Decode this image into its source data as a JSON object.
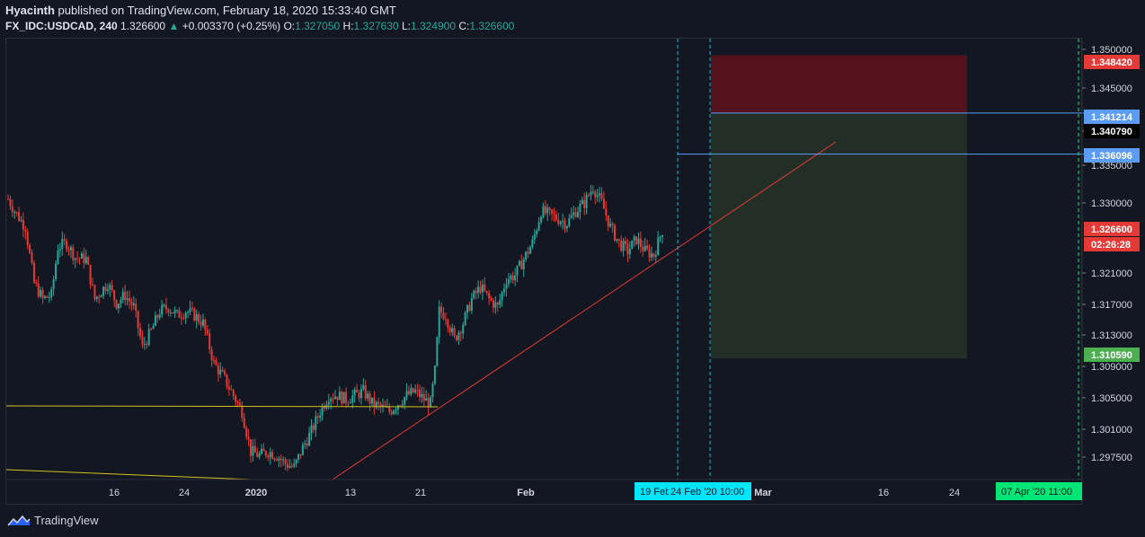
{
  "header": {
    "author": "Hyacinth",
    "published_text": "published on TradingView.com, February 18, 2020 15:33:40 GMT",
    "symbol": "FX_IDC:USDCAD, 240",
    "last": "1.326600",
    "change_icon": "triangle-up-icon",
    "change": "+0.003370 (+0.25%)",
    "open_label": "O:",
    "open": "1.327050",
    "high_label": "H:",
    "high": "1.327630",
    "low_label": "L:",
    "low": "1.324900",
    "close_label": "C:",
    "close": "1.326600"
  },
  "colors": {
    "background": "#131722",
    "up": "#26a69a",
    "down": "#e53935",
    "stop_zone": "#5c131c",
    "target_zone": "#243027",
    "trendline": "#e53935",
    "support": "#d4c21c",
    "cursor_line": "#00bcd4",
    "blue_line": "#5b9cf6",
    "green_line": "#00e676"
  },
  "chart_data": {
    "type": "candlestick",
    "ylim": [
      1.2955,
      1.3505
    ],
    "y_ticks": [
      "1.350000",
      "1.345000",
      "1.340790",
      "1.335000",
      "1.330000",
      "1.321000",
      "1.317000",
      "1.313000",
      "1.309000",
      "1.305000",
      "1.301000",
      "1.297500"
    ],
    "x_ticks": [
      "16",
      "24",
      "2020",
      "13",
      "21",
      "Feb",
      "Mar",
      "16",
      "24"
    ],
    "price_labels": [
      {
        "text": "1.348420",
        "color": "#e53935"
      },
      {
        "text": "1.341214",
        "color": "#5b9cf6"
      },
      {
        "text": "1.340790",
        "color": "#000000"
      },
      {
        "text": "1.336096",
        "color": "#5b9cf6"
      },
      {
        "text": "1.326600",
        "color": "#e53935"
      },
      {
        "text": "02:26:28",
        "color": "#e53935"
      },
      {
        "text": "1.310590",
        "color": "#4caf50"
      }
    ],
    "date_labels": [
      {
        "text": "19 Feb",
        "color": "#00e5ff"
      },
      {
        "text": "24 Feb '20   10:00",
        "color": "#00e5ff"
      },
      {
        "text": "07 Apr '20   11:00",
        "color": "#00e676"
      }
    ],
    "position": {
      "entry": 1.341214,
      "stop": 1.34842,
      "target": 1.31059,
      "bar_line": 1.336096
    },
    "series_keyframes": [
      {
        "i": 0,
        "p": 1.3305
      },
      {
        "i": 3,
        "p": 1.329
      },
      {
        "i": 8,
        "p": 1.327
      },
      {
        "i": 12,
        "p": 1.32
      },
      {
        "i": 16,
        "p": 1.318
      },
      {
        "i": 20,
        "p": 1.3185
      },
      {
        "i": 23,
        "p": 1.3245
      },
      {
        "i": 27,
        "p": 1.325
      },
      {
        "i": 31,
        "p": 1.3232
      },
      {
        "i": 36,
        "p": 1.323
      },
      {
        "i": 40,
        "p": 1.318
      },
      {
        "i": 46,
        "p": 1.32
      },
      {
        "i": 50,
        "p": 1.3175
      },
      {
        "i": 54,
        "p": 1.3185
      },
      {
        "i": 58,
        "p": 1.317
      },
      {
        "i": 62,
        "p": 1.312
      },
      {
        "i": 66,
        "p": 1.314
      },
      {
        "i": 70,
        "p": 1.3165
      },
      {
        "i": 74,
        "p": 1.317
      },
      {
        "i": 78,
        "p": 1.316
      },
      {
        "i": 82,
        "p": 1.3165
      },
      {
        "i": 86,
        "p": 1.316
      },
      {
        "i": 90,
        "p": 1.315
      },
      {
        "i": 95,
        "p": 1.31
      },
      {
        "i": 100,
        "p": 1.308
      },
      {
        "i": 104,
        "p": 1.306
      },
      {
        "i": 108,
        "p": 1.304
      },
      {
        "i": 112,
        "p": 1.299
      },
      {
        "i": 116,
        "p": 1.2985
      },
      {
        "i": 120,
        "p": 1.299
      },
      {
        "i": 124,
        "p": 1.2985
      },
      {
        "i": 128,
        "p": 1.2975
      },
      {
        "i": 132,
        "p": 1.297
      },
      {
        "i": 136,
        "p": 1.2995
      },
      {
        "i": 140,
        "p": 1.3015
      },
      {
        "i": 144,
        "p": 1.304
      },
      {
        "i": 148,
        "p": 1.306
      },
      {
        "i": 152,
        "p": 1.306
      },
      {
        "i": 156,
        "p": 1.3055
      },
      {
        "i": 160,
        "p": 1.306
      },
      {
        "i": 164,
        "p": 1.3065
      },
      {
        "i": 168,
        "p": 1.305
      },
      {
        "i": 172,
        "p": 1.3045
      },
      {
        "i": 176,
        "p": 1.304
      },
      {
        "i": 180,
        "p": 1.305
      },
      {
        "i": 184,
        "p": 1.306
      },
      {
        "i": 188,
        "p": 1.3065
      },
      {
        "i": 192,
        "p": 1.3055
      },
      {
        "i": 195,
        "p": 1.305
      },
      {
        "i": 197,
        "p": 1.309
      },
      {
        "i": 199,
        "p": 1.3165
      },
      {
        "i": 202,
        "p": 1.316
      },
      {
        "i": 206,
        "p": 1.313
      },
      {
        "i": 210,
        "p": 1.315
      },
      {
        "i": 214,
        "p": 1.318
      },
      {
        "i": 218,
        "p": 1.3195
      },
      {
        "i": 222,
        "p": 1.318
      },
      {
        "i": 226,
        "p": 1.317
      },
      {
        "i": 230,
        "p": 1.3205
      },
      {
        "i": 234,
        "p": 1.321
      },
      {
        "i": 238,
        "p": 1.323
      },
      {
        "i": 242,
        "p": 1.325
      },
      {
        "i": 246,
        "p": 1.329
      },
      {
        "i": 250,
        "p": 1.3285
      },
      {
        "i": 254,
        "p": 1.328
      },
      {
        "i": 258,
        "p": 1.3275
      },
      {
        "i": 262,
        "p": 1.329
      },
      {
        "i": 266,
        "p": 1.33
      },
      {
        "i": 270,
        "p": 1.332
      },
      {
        "i": 274,
        "p": 1.33
      },
      {
        "i": 278,
        "p": 1.327
      },
      {
        "i": 282,
        "p": 1.325
      },
      {
        "i": 286,
        "p": 1.324
      },
      {
        "i": 290,
        "p": 1.3255
      },
      {
        "i": 294,
        "p": 1.324
      },
      {
        "i": 298,
        "p": 1.3235
      },
      {
        "i": 302,
        "p": 1.3266
      }
    ]
  },
  "footer": {
    "brand_icon": "tradingview-logo-icon",
    "brand": "TradingView"
  }
}
